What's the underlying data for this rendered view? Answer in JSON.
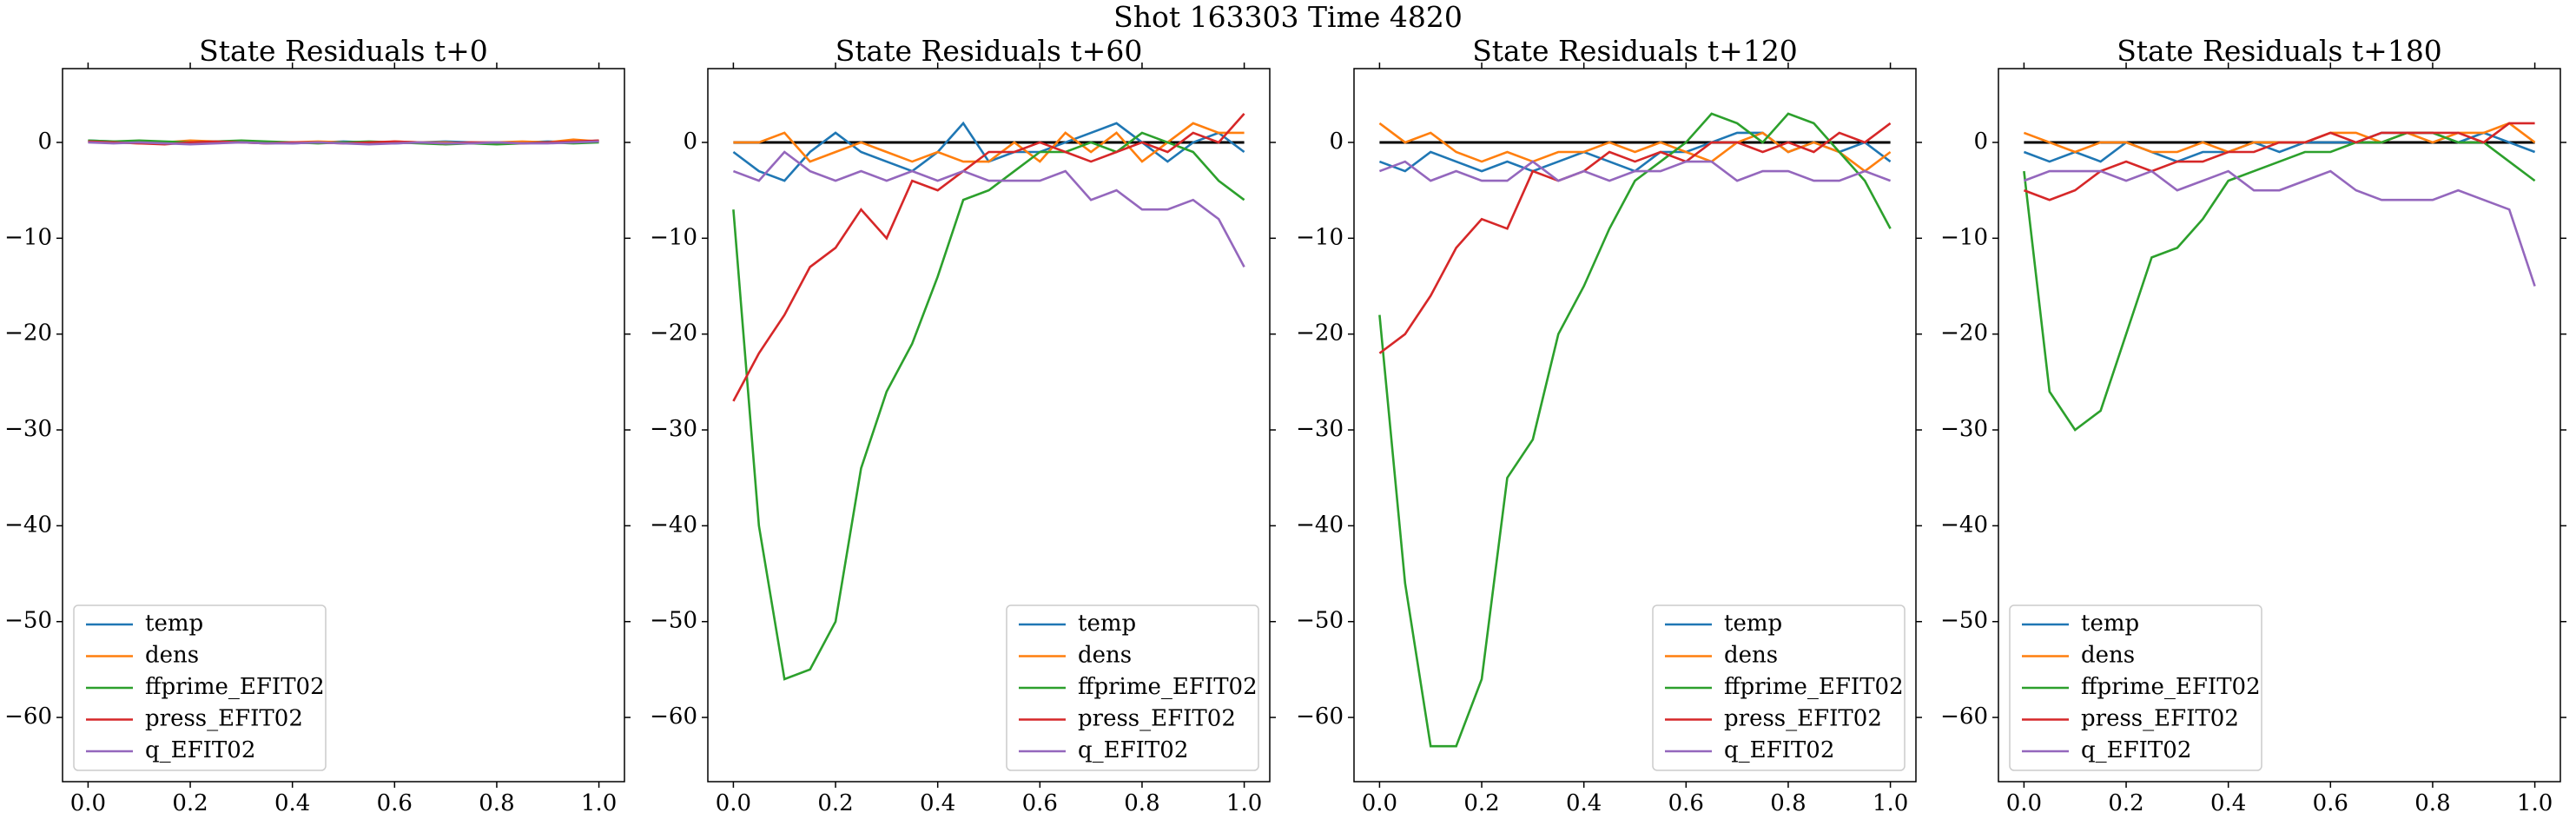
{
  "title": "Shot 163303   Time 4820",
  "chart_data": [
    {
      "type": "line",
      "title": "State Residuals t+0",
      "legend": "lower left",
      "x": [
        0,
        0.05,
        0.1,
        0.15,
        0.2,
        0.25,
        0.3,
        0.35,
        0.4,
        0.45,
        0.5,
        0.55,
        0.6,
        0.65,
        0.7,
        0.75,
        0.8,
        0.85,
        0.9,
        0.95,
        1.0
      ],
      "xlim": [
        -0.05,
        1.05
      ],
      "ylim": [
        -66.7,
        7.7
      ],
      "xticks": [
        {
          "value": 0,
          "label": "0.0"
        },
        0.2,
        0.4,
        0.6,
        0.8,
        {
          "value": 1,
          "label": "1.0"
        }
      ],
      "yticks": [
        {
          "value": -60,
          "label": "−60"
        },
        {
          "value": -50,
          "label": "−50"
        },
        {
          "value": -40,
          "label": "−40"
        },
        {
          "value": -30,
          "label": "−30"
        },
        {
          "value": -20,
          "label": "−20"
        },
        {
          "value": -10,
          "label": "−10"
        },
        0
      ],
      "series": [
        {
          "name": "temp",
          "color": "#1f77b4",
          "values": [
            0.2,
            0.1,
            0,
            -0.1,
            0.1,
            0,
            0.1,
            0,
            -0.1,
            0,
            0.1,
            0,
            -0.1,
            0,
            0.1,
            0,
            -0.1,
            0,
            0.1,
            0,
            0.2
          ]
        },
        {
          "name": "dens",
          "color": "#ff7f0e",
          "values": [
            0.1,
            0,
            -0.1,
            0,
            0.2,
            0.1,
            0,
            -0.1,
            0,
            0.1,
            0,
            -0.1,
            0.1,
            0,
            0,
            -0.1,
            0,
            0.1,
            0,
            0.3,
            0.1
          ]
        },
        {
          "name": "ffprime_EFIT02",
          "color": "#2ca02c",
          "values": [
            0.2,
            0.1,
            0.2,
            0.1,
            0,
            0.1,
            0.2,
            0.1,
            0,
            -0.1,
            0,
            0.1,
            0,
            -0.1,
            -0.2,
            -0.1,
            -0.2,
            -0.1,
            0,
            -0.1,
            0
          ]
        },
        {
          "name": "press_EFIT02",
          "color": "#d62728",
          "values": [
            0.1,
            0,
            -0.1,
            -0.2,
            0,
            0.1,
            0,
            -0.1,
            0,
            0,
            -0.1,
            0,
            0.1,
            0,
            -0.1,
            0,
            0,
            -0.1,
            0,
            0.1,
            0.2
          ]
        },
        {
          "name": "q_EFIT02",
          "color": "#9467bd",
          "values": [
            0,
            -0.1,
            0,
            -0.1,
            -0.2,
            -0.1,
            0,
            -0.1,
            -0.1,
            0,
            -0.1,
            -0.2,
            -0.1,
            0,
            -0.1,
            -0.1,
            0,
            -0.1,
            -0.1,
            0,
            0.1
          ]
        }
      ]
    },
    {
      "type": "line",
      "title": "State Residuals t+60",
      "legend": "lower right",
      "hline": 0,
      "x": [
        0,
        0.05,
        0.1,
        0.15,
        0.2,
        0.25,
        0.3,
        0.35,
        0.4,
        0.45,
        0.5,
        0.55,
        0.6,
        0.65,
        0.7,
        0.75,
        0.8,
        0.85,
        0.9,
        0.95,
        1.0
      ],
      "xlim": [
        -0.05,
        1.05
      ],
      "ylim": [
        -66.7,
        7.7
      ],
      "xticks": [
        {
          "value": 0,
          "label": "0.0"
        },
        0.2,
        0.4,
        0.6,
        0.8,
        {
          "value": 1,
          "label": "1.0"
        }
      ],
      "yticks": [
        {
          "value": -60,
          "label": "−60"
        },
        {
          "value": -50,
          "label": "−50"
        },
        {
          "value": -40,
          "label": "−40"
        },
        {
          "value": -30,
          "label": "−30"
        },
        {
          "value": -20,
          "label": "−20"
        },
        {
          "value": -10,
          "label": "−10"
        },
        0
      ],
      "series": [
        {
          "name": "temp",
          "color": "#1f77b4",
          "values": [
            -1,
            -3,
            -4,
            -1,
            1,
            -1,
            -2,
            -3,
            -1,
            2,
            -2,
            -1,
            -1,
            0,
            1,
            2,
            0,
            -2,
            0,
            1,
            -1
          ]
        },
        {
          "name": "dens",
          "color": "#ff7f0e",
          "values": [
            0,
            0,
            1,
            -2,
            -1,
            0,
            -1,
            -2,
            -1,
            -2,
            -2,
            0,
            -2,
            1,
            -1,
            1,
            -2,
            0,
            2,
            1,
            1
          ]
        },
        {
          "name": "ffprime_EFIT02",
          "color": "#2ca02c",
          "values": [
            -7,
            -40,
            -56,
            -55,
            -50,
            -34,
            -26,
            -21,
            -14,
            -6,
            -5,
            -3,
            -1,
            -1,
            0,
            -1,
            1,
            0,
            -1,
            -4,
            -6
          ]
        },
        {
          "name": "press_EFIT02",
          "color": "#d62728",
          "values": [
            -27,
            -22,
            -18,
            -13,
            -11,
            -7,
            -10,
            -4,
            -5,
            -3,
            -1,
            -1,
            0,
            -1,
            -2,
            -1,
            0,
            -1,
            1,
            0,
            3
          ]
        },
        {
          "name": "q_EFIT02",
          "color": "#9467bd",
          "values": [
            -3,
            -4,
            -1,
            -3,
            -4,
            -3,
            -4,
            -3,
            -4,
            -3,
            -4,
            -4,
            -4,
            -3,
            -6,
            -5,
            -7,
            -7,
            -6,
            -8,
            -13
          ]
        }
      ]
    },
    {
      "type": "line",
      "title": "State Residuals t+120",
      "legend": "lower right",
      "hline": 0,
      "x": [
        0,
        0.05,
        0.1,
        0.15,
        0.2,
        0.25,
        0.3,
        0.35,
        0.4,
        0.45,
        0.5,
        0.55,
        0.6,
        0.65,
        0.7,
        0.75,
        0.8,
        0.85,
        0.9,
        0.95,
        1.0
      ],
      "xlim": [
        -0.05,
        1.05
      ],
      "ylim": [
        -66.7,
        7.7
      ],
      "xticks": [
        {
          "value": 0,
          "label": "0.0"
        },
        0.2,
        0.4,
        0.6,
        0.8,
        {
          "value": 1,
          "label": "1.0"
        }
      ],
      "yticks": [
        {
          "value": -60,
          "label": "−60"
        },
        {
          "value": -50,
          "label": "−50"
        },
        {
          "value": -40,
          "label": "−40"
        },
        {
          "value": -30,
          "label": "−30"
        },
        {
          "value": -20,
          "label": "−20"
        },
        {
          "value": -10,
          "label": "−10"
        },
        0
      ],
      "series": [
        {
          "name": "temp",
          "color": "#1f77b4",
          "values": [
            -2,
            -3,
            -1,
            -2,
            -3,
            -2,
            -3,
            -2,
            -1,
            -2,
            -3,
            -1,
            -1,
            0,
            1,
            1,
            -1,
            0,
            -1,
            0,
            -2
          ]
        },
        {
          "name": "dens",
          "color": "#ff7f0e",
          "values": [
            2,
            0,
            1,
            -1,
            -2,
            -1,
            -2,
            -1,
            -1,
            0,
            -1,
            0,
            -1,
            -2,
            0,
            1,
            -1,
            0,
            -1,
            -3,
            -1
          ]
        },
        {
          "name": "ffprime_EFIT02",
          "color": "#2ca02c",
          "values": [
            -18,
            -46,
            -63,
            -63,
            -56,
            -35,
            -31,
            -20,
            -15,
            -9,
            -4,
            -2,
            0,
            3,
            2,
            0,
            3,
            2,
            -1,
            -4,
            -9
          ]
        },
        {
          "name": "press_EFIT02",
          "color": "#d62728",
          "values": [
            -22,
            -20,
            -16,
            -11,
            -8,
            -9,
            -3,
            -4,
            -3,
            -1,
            -2,
            -1,
            -2,
            0,
            0,
            -1,
            0,
            -1,
            1,
            0,
            2
          ]
        },
        {
          "name": "q_EFIT02",
          "color": "#9467bd",
          "values": [
            -3,
            -2,
            -4,
            -3,
            -4,
            -4,
            -2,
            -4,
            -3,
            -4,
            -3,
            -3,
            -2,
            -2,
            -4,
            -3,
            -3,
            -4,
            -4,
            -3,
            -4
          ]
        }
      ]
    },
    {
      "type": "line",
      "title": "State Residuals t+180",
      "legend": "lower left",
      "hline": 0,
      "x": [
        0,
        0.05,
        0.1,
        0.15,
        0.2,
        0.25,
        0.3,
        0.35,
        0.4,
        0.45,
        0.5,
        0.55,
        0.6,
        0.65,
        0.7,
        0.75,
        0.8,
        0.85,
        0.9,
        0.95,
        1.0
      ],
      "xlim": [
        -0.05,
        1.05
      ],
      "ylim": [
        -66.7,
        7.7
      ],
      "xticks": [
        {
          "value": 0,
          "label": "0.0"
        },
        0.2,
        0.4,
        0.6,
        0.8,
        {
          "value": 1,
          "label": "1.0"
        }
      ],
      "yticks": [
        {
          "value": -60,
          "label": "−60"
        },
        {
          "value": -50,
          "label": "−50"
        },
        {
          "value": -40,
          "label": "−40"
        },
        {
          "value": -30,
          "label": "−30"
        },
        {
          "value": -20,
          "label": "−20"
        },
        {
          "value": -10,
          "label": "−10"
        },
        0
      ],
      "series": [
        {
          "name": "temp",
          "color": "#1f77b4",
          "values": [
            -1,
            -2,
            -1,
            -2,
            0,
            -1,
            -2,
            -1,
            -1,
            0,
            -1,
            0,
            0,
            0,
            1,
            1,
            1,
            0,
            1,
            0,
            -1
          ]
        },
        {
          "name": "dens",
          "color": "#ff7f0e",
          "values": [
            1,
            0,
            -1,
            0,
            0,
            -1,
            -1,
            0,
            -1,
            0,
            0,
            0,
            1,
            1,
            0,
            1,
            0,
            1,
            1,
            2,
            0
          ]
        },
        {
          "name": "ffprime_EFIT02",
          "color": "#2ca02c",
          "values": [
            -3,
            -26,
            -30,
            -28,
            -20,
            -12,
            -11,
            -8,
            -4,
            -3,
            -2,
            -1,
            -1,
            0,
            0,
            1,
            1,
            0,
            0,
            -2,
            -4
          ]
        },
        {
          "name": "press_EFIT02",
          "color": "#d62728",
          "values": [
            -5,
            -6,
            -5,
            -3,
            -2,
            -3,
            -2,
            -2,
            -1,
            -1,
            0,
            0,
            1,
            0,
            1,
            1,
            1,
            1,
            0,
            2,
            2
          ]
        },
        {
          "name": "q_EFIT02",
          "color": "#9467bd",
          "values": [
            -4,
            -3,
            -3,
            -3,
            -4,
            -3,
            -5,
            -4,
            -3,
            -5,
            -5,
            -4,
            -3,
            -5,
            -6,
            -6,
            -6,
            -5,
            -6,
            -7,
            -15
          ]
        }
      ]
    }
  ]
}
